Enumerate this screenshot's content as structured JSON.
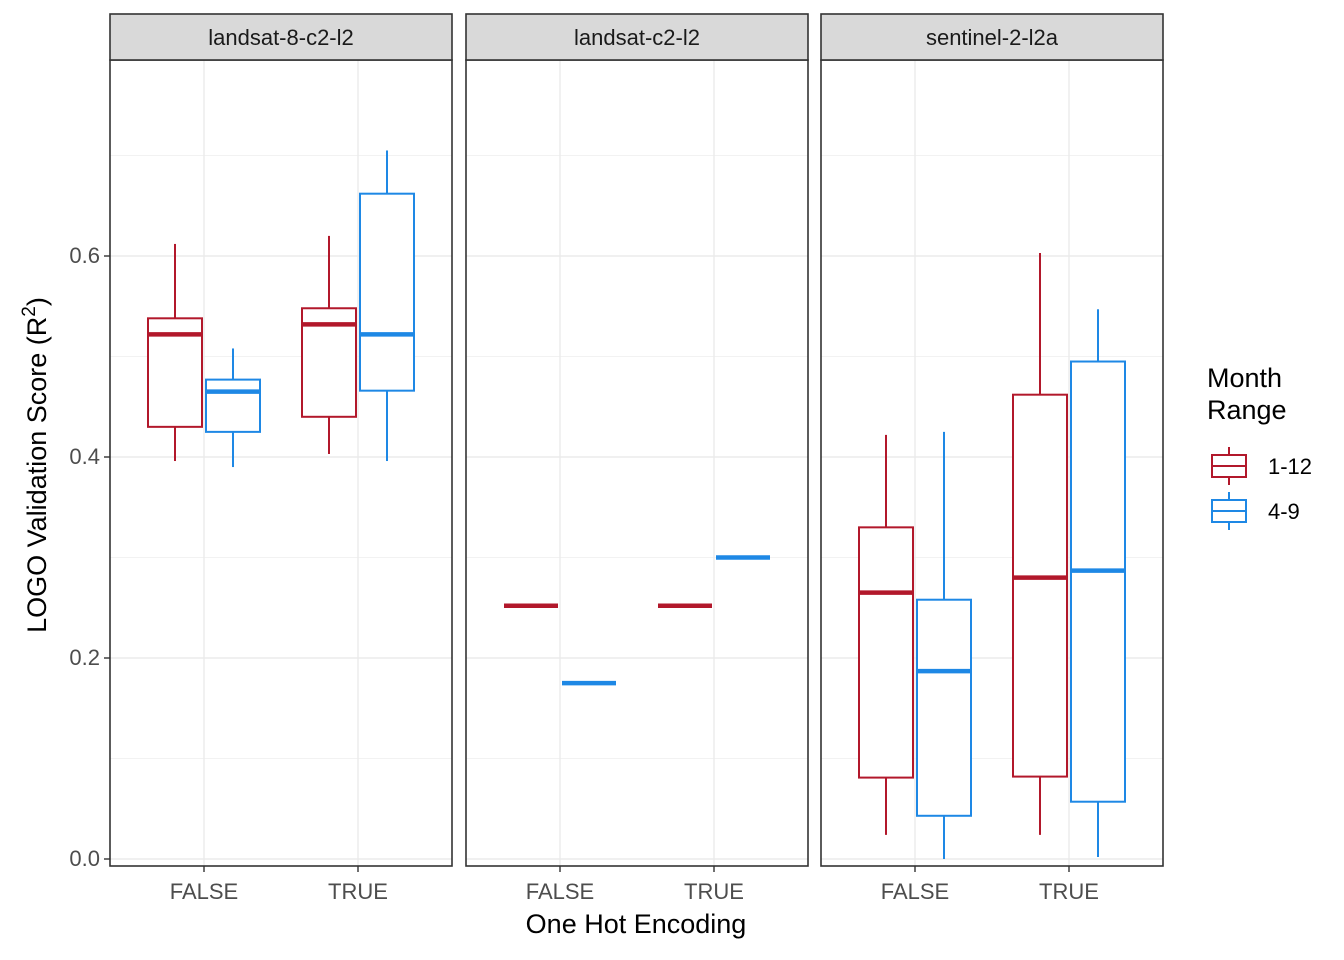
{
  "chart_data": {
    "type": "boxplot",
    "xlabel": "One Hot Encoding",
    "ylabel": "LOGO Validation Score (R",
    "ylabel_superscript": "2",
    "ylabel_close": ")",
    "ylim": [
      -0.005,
      0.8
    ],
    "yticks": [
      0.0,
      0.2,
      0.4,
      0.6
    ],
    "ytick_labels": [
      "0.0",
      "0.2",
      "0.4",
      "0.6"
    ],
    "categories": [
      "FALSE",
      "TRUE"
    ],
    "legend": {
      "title_lines": [
        "Month",
        "Range"
      ],
      "position": "right",
      "entries": [
        {
          "label": "1-12",
          "color": "#b2182b"
        },
        {
          "label": "4-9",
          "color": "#1e88e5"
        }
      ]
    },
    "grid": true,
    "panels": [
      {
        "title": "landsat-8-c2-l2",
        "boxes": [
          {
            "category": "FALSE",
            "series": "1-12",
            "min": 0.396,
            "q1": 0.43,
            "median": 0.522,
            "q3": 0.538,
            "max": 0.612
          },
          {
            "category": "FALSE",
            "series": "4-9",
            "min": 0.39,
            "q1": 0.425,
            "median": 0.465,
            "q3": 0.477,
            "max": 0.508
          },
          {
            "category": "TRUE",
            "series": "1-12",
            "min": 0.403,
            "q1": 0.44,
            "median": 0.532,
            "q3": 0.548,
            "max": 0.62
          },
          {
            "category": "TRUE",
            "series": "4-9",
            "min": 0.396,
            "q1": 0.466,
            "median": 0.522,
            "q3": 0.662,
            "max": 0.705
          }
        ]
      },
      {
        "title": "landsat-c2-l2",
        "boxes": [
          {
            "category": "FALSE",
            "series": "1-12",
            "min": 0.252,
            "q1": 0.252,
            "median": 0.252,
            "q3": 0.252,
            "max": 0.252
          },
          {
            "category": "FALSE",
            "series": "4-9",
            "min": 0.175,
            "q1": 0.175,
            "median": 0.175,
            "q3": 0.175,
            "max": 0.175
          },
          {
            "category": "TRUE",
            "series": "1-12",
            "min": 0.252,
            "q1": 0.252,
            "median": 0.252,
            "q3": 0.252,
            "max": 0.252
          },
          {
            "category": "TRUE",
            "series": "4-9",
            "min": 0.3,
            "q1": 0.3,
            "median": 0.3,
            "q3": 0.3,
            "max": 0.3
          }
        ]
      },
      {
        "title": "sentinel-2-l2a",
        "boxes": [
          {
            "category": "FALSE",
            "series": "1-12",
            "min": 0.024,
            "q1": 0.081,
            "median": 0.265,
            "q3": 0.33,
            "max": 0.422
          },
          {
            "category": "FALSE",
            "series": "4-9",
            "min": 0.0,
            "q1": 0.043,
            "median": 0.187,
            "q3": 0.258,
            "max": 0.425
          },
          {
            "category": "TRUE",
            "series": "1-12",
            "min": 0.024,
            "q1": 0.082,
            "median": 0.28,
            "q3": 0.462,
            "max": 0.603
          },
          {
            "category": "TRUE",
            "series": "4-9",
            "min": 0.002,
            "q1": 0.057,
            "median": 0.287,
            "q3": 0.495,
            "max": 0.547
          }
        ]
      }
    ]
  }
}
